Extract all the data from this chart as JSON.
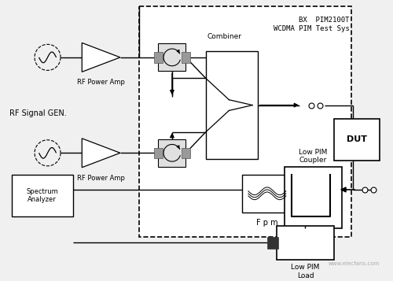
{
  "label_bx_pim": "BX  PIM2100T\nWCDMA PIM Test Sys",
  "label_rf_gen": "RF Signal GEN.",
  "label_spectrum": "Spectrum\nAnalyzer",
  "label_combiner": "Combiner",
  "label_fpm": "F p m",
  "label_low_pim_coupler": "Low PIM\nCoupler",
  "label_low_pim_load": "Low PIM\nLoad",
  "label_dut": "DUT",
  "label_rf_power_amp1": "RF Power Amp",
  "label_rf_power_amp2": "RF Power Amp",
  "fig_bg": "#f0f0f0",
  "line_color": "#000000"
}
